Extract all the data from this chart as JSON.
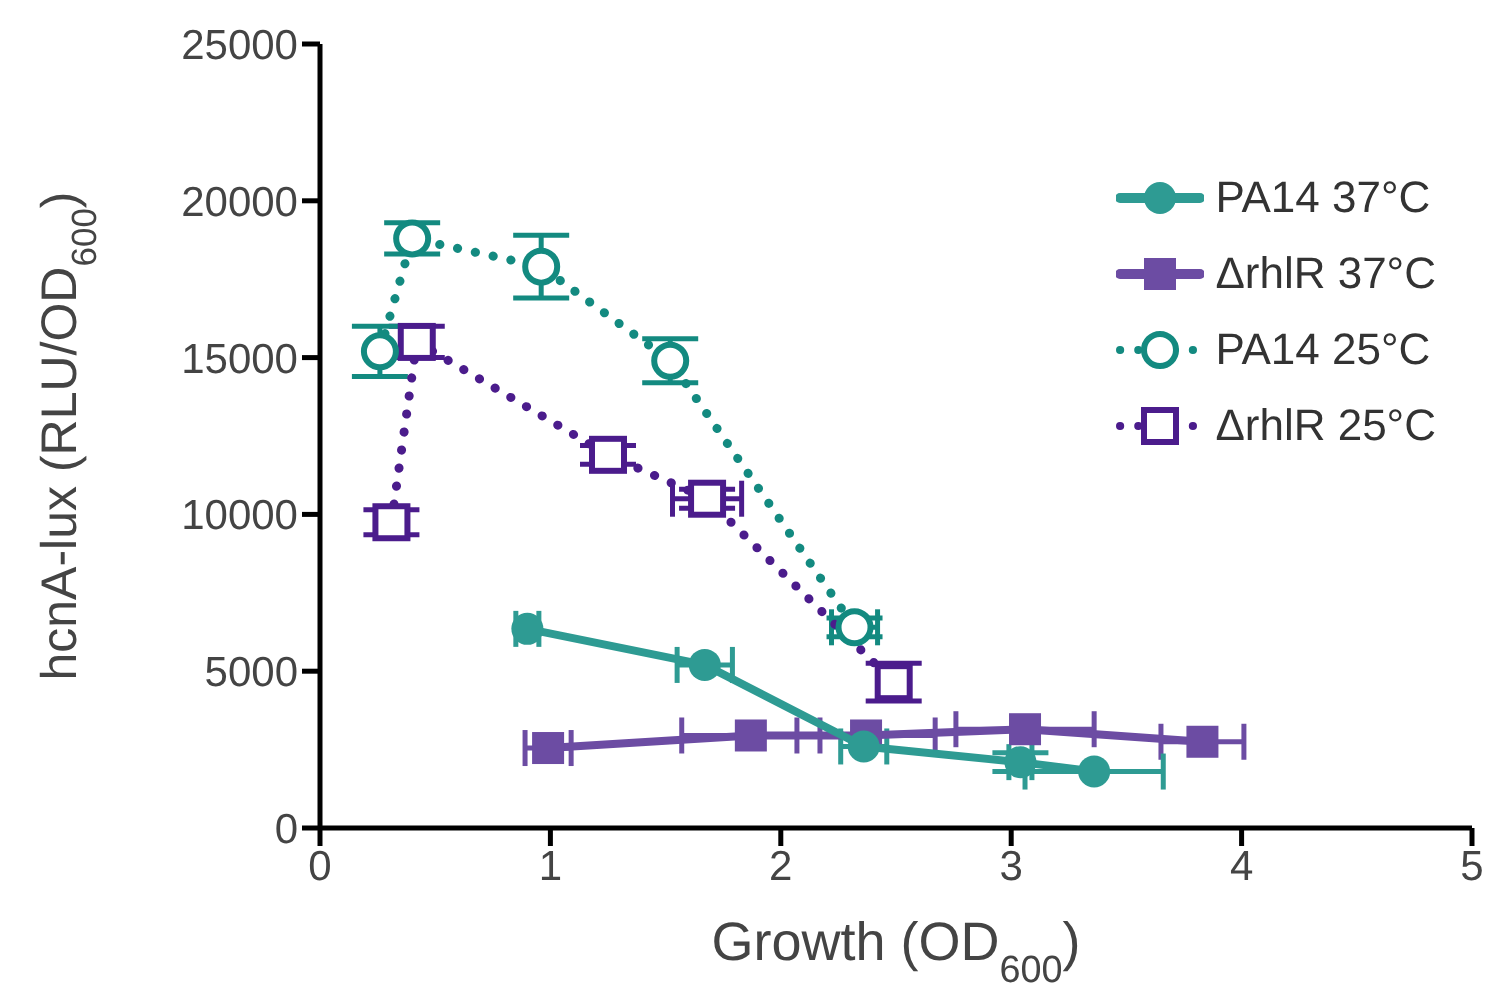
{
  "chart_data": {
    "type": "scatter",
    "xlabel": "Growth (OD$_{600}$)",
    "ylabel": "hcnA-lux (RLU/OD$_{600}$)",
    "xlim": [
      0,
      5
    ],
    "xticks": [
      0,
      1,
      2,
      3,
      4,
      5
    ],
    "ylim": [
      0,
      25000
    ],
    "yticks": [
      0,
      5000,
      10000,
      15000,
      20000,
      25000
    ],
    "grid": false,
    "legend": "top right",
    "series": [
      {
        "name": "PA14 37°C",
        "type": "line",
        "marker": "circle",
        "line_style": "solid",
        "color": "#2e9b93",
        "x": [
          0.9,
          1.67,
          2.36,
          3.04,
          3.36
        ],
        "values": [
          6350,
          5200,
          2600,
          2100,
          1800
        ],
        "xerrors": [
          0.05,
          0.12,
          0.1,
          0.05,
          0.3
        ],
        "errors": [
          null,
          null,
          null,
          300,
          null
        ]
      },
      {
        "name": "ΔrhlR 37°C",
        "type": "line",
        "marker": "square",
        "line_style": "solid",
        "color": "#6c4ca3",
        "x": [
          0.99,
          1.87,
          2.37,
          3.06,
          3.83
        ],
        "values": [
          2550,
          2950,
          2950,
          3150,
          2750
        ],
        "xerrors": [
          0.1,
          0.3,
          0.3,
          0.3,
          0.18
        ]
      },
      {
        "name": "PA14 25°C",
        "type": "line",
        "marker": "circle",
        "line_style": "dotted",
        "color": "#138a80",
        "x": [
          0.26,
          0.4,
          0.96,
          1.52,
          2.32
        ],
        "values": [
          15200,
          18800,
          17900,
          14900,
          6400
        ],
        "xerrors": [
          null,
          null,
          null,
          null,
          0.1
        ],
        "errors": [
          800,
          500,
          1000,
          700,
          300
        ]
      },
      {
        "name": "ΔrhlR 25°C",
        "type": "line",
        "marker": "square",
        "line_style": "dotted",
        "color": "#4b1c8c",
        "x": [
          0.31,
          0.42,
          1.25,
          1.68,
          2.49
        ],
        "values": [
          9750,
          15500,
          11900,
          10500,
          4650
        ],
        "xerrors": [
          null,
          null,
          0.06,
          0.15,
          null
        ],
        "errors": [
          400,
          500,
          300,
          300,
          600
        ]
      }
    ]
  }
}
